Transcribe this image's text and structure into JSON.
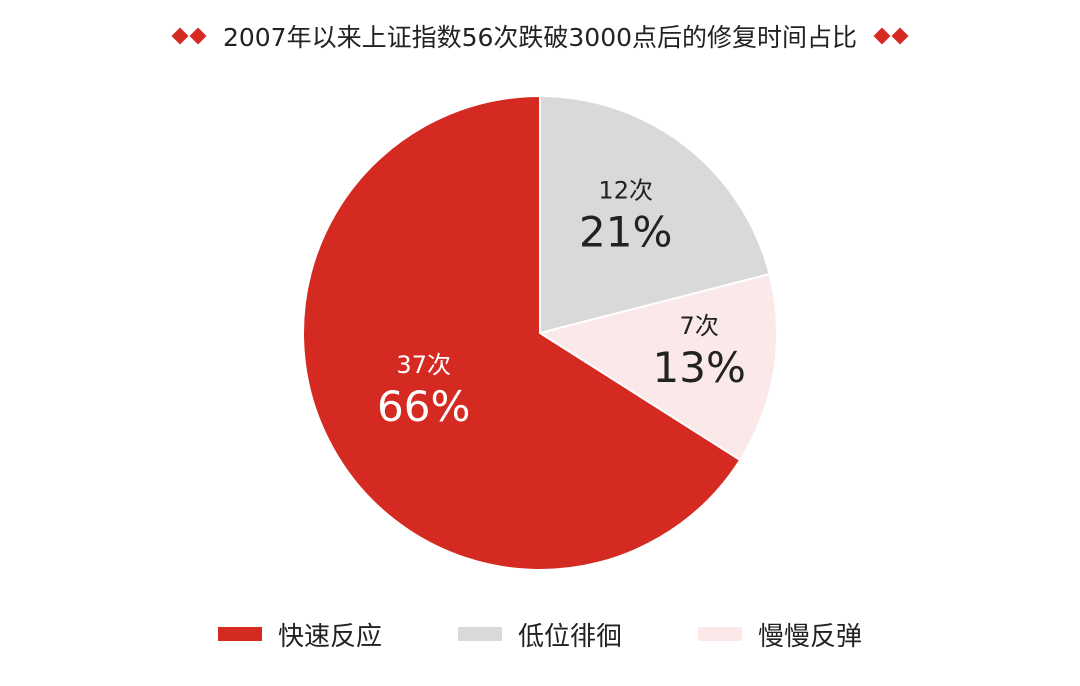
{
  "chart_data": {
    "type": "pie",
    "title": "2007年以来上证指数56次跌破3000点后的修复时间占比",
    "slices": [
      {
        "label": "快速反应",
        "count_label": "37次",
        "percent_label": "66%",
        "value": 66,
        "color": "#d42a22",
        "text_color": "#ffffff"
      },
      {
        "label": "低位徘徊",
        "count_label": "12次",
        "percent_label": "21%",
        "value": 21,
        "color": "#d9d9d9",
        "text_color": "#222222"
      },
      {
        "label": "慢慢反弹",
        "count_label": "7次",
        "percent_label": "13%",
        "value": 13,
        "color": "#fbe8e8",
        "text_color": "#222222"
      }
    ]
  }
}
